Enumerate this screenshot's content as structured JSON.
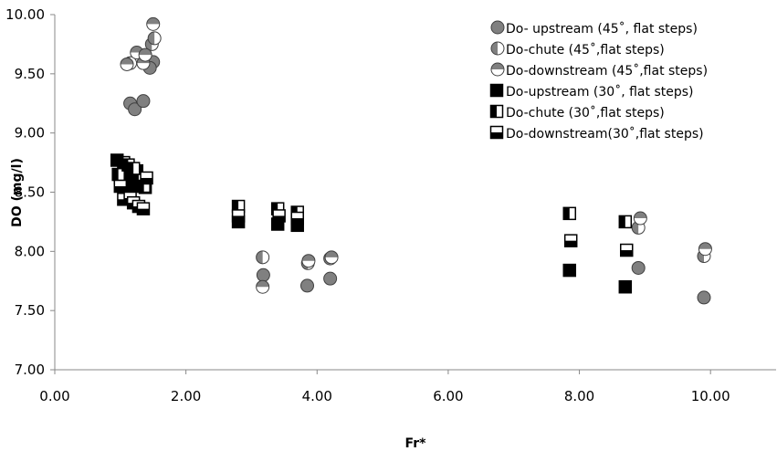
{
  "chart_data": {
    "type": "scatter",
    "title": "",
    "xlabel": "Fr*",
    "ylabel": "DO (mg/l)",
    "xlim": [
      0,
      11
    ],
    "ylim": [
      7,
      10
    ],
    "x_ticks": [
      "0.00",
      "2.00",
      "4.00",
      "6.00",
      "8.00",
      "10.00"
    ],
    "y_ticks": [
      "7.00",
      "7.50",
      "8.00",
      "8.50",
      "9.00",
      "9.50",
      "10.00"
    ],
    "grid": false,
    "legend_position": "top-right",
    "colors": {
      "fill": "#808080",
      "dark": "#000000",
      "white": "#ffffff"
    },
    "series": [
      {
        "name": "Do- upstream (45˚, flat steps)",
        "marker": "circle",
        "style": "full",
        "points": [
          [
            1.15,
            9.25
          ],
          [
            1.22,
            9.2
          ],
          [
            1.35,
            9.27
          ],
          [
            1.5,
            9.6
          ],
          [
            1.45,
            9.55
          ],
          [
            3.18,
            7.8
          ],
          [
            3.85,
            7.71
          ],
          [
            4.2,
            7.77
          ],
          [
            8.9,
            7.86
          ],
          [
            9.9,
            7.61
          ]
        ]
      },
      {
        "name": "Do-chute (45˚,flat steps)",
        "marker": "circle",
        "style": "left",
        "points": [
          [
            1.15,
            9.59
          ],
          [
            1.48,
            9.75
          ],
          [
            1.52,
            9.8
          ],
          [
            3.17,
            7.95
          ],
          [
            3.86,
            7.9
          ],
          [
            4.2,
            7.94
          ],
          [
            8.9,
            8.2
          ],
          [
            9.9,
            7.96
          ]
        ]
      },
      {
        "name": "Do-downstream (45˚,flat steps)",
        "marker": "circle",
        "style": "top",
        "points": [
          [
            1.1,
            9.58
          ],
          [
            1.25,
            9.68
          ],
          [
            1.35,
            9.59
          ],
          [
            1.38,
            9.66
          ],
          [
            1.5,
            9.92
          ],
          [
            3.17,
            7.7
          ],
          [
            3.87,
            7.92
          ],
          [
            4.22,
            7.95
          ],
          [
            8.93,
            8.28
          ],
          [
            9.92,
            8.02
          ]
        ]
      },
      {
        "name": "Do-upstream (30˚, flat steps)",
        "marker": "square",
        "style": "full",
        "points": [
          [
            0.95,
            8.77
          ],
          [
            1.0,
            8.62
          ],
          [
            1.05,
            8.6
          ],
          [
            1.1,
            8.65
          ],
          [
            1.18,
            8.55
          ],
          [
            1.25,
            8.68
          ],
          [
            1.3,
            8.6
          ],
          [
            1.38,
            8.54
          ],
          [
            2.8,
            8.25
          ],
          [
            3.4,
            8.23
          ],
          [
            3.7,
            8.22
          ],
          [
            7.85,
            7.84
          ],
          [
            8.7,
            7.7
          ]
        ]
      },
      {
        "name": "Do-chute (30˚,flat steps)",
        "marker": "square",
        "style": "left",
        "points": [
          [
            0.97,
            8.65
          ],
          [
            1.05,
            8.75
          ],
          [
            1.12,
            8.73
          ],
          [
            1.2,
            8.7
          ],
          [
            1.28,
            8.6
          ],
          [
            1.36,
            8.55
          ],
          [
            2.8,
            8.38
          ],
          [
            3.4,
            8.36
          ],
          [
            3.7,
            8.33
          ],
          [
            7.85,
            8.32
          ],
          [
            8.7,
            8.25
          ]
        ]
      },
      {
        "name": "Do-downstream(30˚,flat steps)",
        "marker": "square",
        "style": "bottom",
        "points": [
          [
            1.0,
            8.55
          ],
          [
            1.05,
            8.44
          ],
          [
            1.15,
            8.45
          ],
          [
            1.2,
            8.41
          ],
          [
            1.28,
            8.38
          ],
          [
            1.35,
            8.36
          ],
          [
            1.4,
            8.62
          ],
          [
            2.8,
            8.3
          ],
          [
            3.42,
            8.3
          ],
          [
            3.7,
            8.28
          ],
          [
            7.87,
            8.09
          ],
          [
            8.72,
            8.01
          ]
        ]
      }
    ]
  }
}
